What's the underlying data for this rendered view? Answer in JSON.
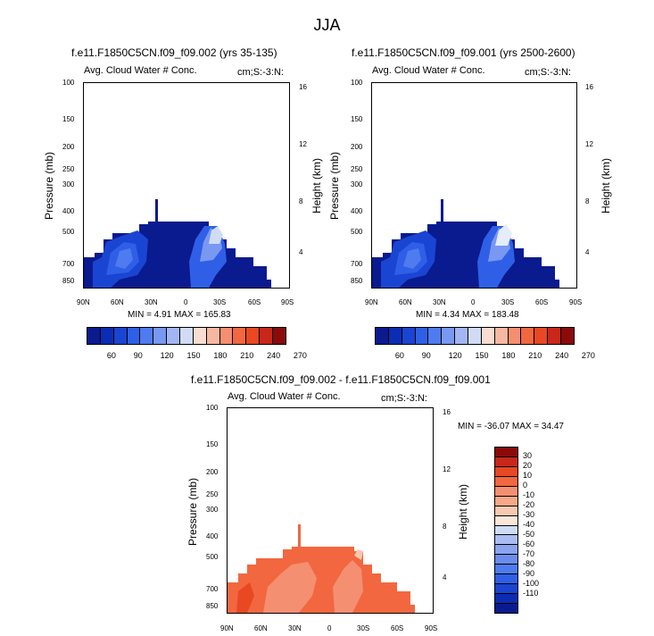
{
  "title": "JJA",
  "panels": [
    {
      "title": "f.e11.F1850C5CN.f09_f09.002 (yrs 35-135)",
      "left_label": "Avg. Cloud Water # Conc.",
      "right_label": "cm;S:-3:N:",
      "ylabel": "Pressure (mb)",
      "ylabel2": "Height (km)",
      "stats": "MIN =   4.91   MAX = 165.83"
    },
    {
      "title": "f.e11.F1850C5CN.f09_f09.001 (yrs 2500-2600)",
      "left_label": "Avg. Cloud Water # Conc.",
      "right_label": "cm;S:-3:N:",
      "ylabel": "Pressure (mb)",
      "ylabel2": "Height (km)",
      "stats": "MIN =   4.34   MAX = 183.48"
    },
    {
      "title": "f.e11.F1850C5CN.f09_f09.002 - f.e11.F1850C5CN.f09_f09.001",
      "left_label": "Avg. Cloud Water # Conc.",
      "right_label": "cm;S:-3:N:",
      "ylabel": "Pressure (mb)",
      "ylabel2": "Height (km)",
      "stats": "MIN = -36.07   MAX =  34.47"
    }
  ],
  "axes": {
    "pressure_ticks": [
      "100",
      "150",
      "200",
      "250",
      "300",
      "400",
      "500",
      "700",
      "850"
    ],
    "height_ticks": [
      "16",
      "12",
      "8",
      "4"
    ],
    "lat_ticks": [
      "90N",
      "60N",
      "30N",
      "0",
      "30S",
      "60S",
      "90S"
    ]
  },
  "colorbar1": {
    "labels": [
      "60",
      "90",
      "120",
      "150",
      "180",
      "210",
      "240",
      "270"
    ],
    "colors": [
      "#0a1a8f",
      "#0a2db4",
      "#1a45d2",
      "#2f5fe6",
      "#4f7bf0",
      "#7898f2",
      "#a2b6f4",
      "#d0dcf6",
      "#f8ddd0",
      "#f7b8a2",
      "#f58f72",
      "#f2673f",
      "#e84822",
      "#c8271a",
      "#8b0a0a"
    ]
  },
  "colorbar2": {
    "labels": [
      "30",
      "20",
      "10",
      "0",
      "-10",
      "-20",
      "-30",
      "-40",
      "-50",
      "-60",
      "-70",
      "-80",
      "-90",
      "-100",
      "-110"
    ],
    "colors": [
      "#8b0a0a",
      "#c8271a",
      "#e84822",
      "#f2673f",
      "#f58f72",
      "#f7a888",
      "#f8c8b0",
      "#fbe6da",
      "#d0dcf6",
      "#aabcf2",
      "#8aa4f0",
      "#6a8ced",
      "#4f7bf0",
      "#2f5fe6",
      "#1a45d2",
      "#0a2db4",
      "#0a1a8f"
    ]
  },
  "chart_data": [
    {
      "type": "heatmap",
      "title": "f.e11.F1850C5CN.f09_f09.002 (yrs 35-135)",
      "subtitle": "Avg. Cloud Water # Conc.",
      "units": "cm;S:-3:N:",
      "xlabel": "",
      "ylabel": "Pressure (mb)",
      "ylabel_right": "Height (km)",
      "x_ticks": [
        "90N",
        "60N",
        "30N",
        "0",
        "30S",
        "60S",
        "90S"
      ],
      "y_ticks": [
        100,
        150,
        200,
        250,
        300,
        400,
        500,
        700,
        850
      ],
      "y2_ticks": [
        16,
        12,
        8,
        4
      ],
      "min": 4.91,
      "max": 165.83,
      "levels": [
        60,
        90,
        120,
        150,
        180,
        210,
        240,
        270
      ]
    },
    {
      "type": "heatmap",
      "title": "f.e11.F1850C5CN.f09_f09.001 (yrs 2500-2600)",
      "subtitle": "Avg. Cloud Water # Conc.",
      "units": "cm;S:-3:N:",
      "xlabel": "",
      "ylabel": "Pressure (mb)",
      "ylabel_right": "Height (km)",
      "x_ticks": [
        "90N",
        "60N",
        "30N",
        "0",
        "30S",
        "60S",
        "90S"
      ],
      "y_ticks": [
        100,
        150,
        200,
        250,
        300,
        400,
        500,
        700,
        850
      ],
      "y2_ticks": [
        16,
        12,
        8,
        4
      ],
      "min": 4.34,
      "max": 183.48,
      "levels": [
        60,
        90,
        120,
        150,
        180,
        210,
        240,
        270
      ]
    },
    {
      "type": "heatmap",
      "title": "f.e11.F1850C5CN.f09_f09.002 - f.e11.F1850C5CN.f09_f09.001",
      "subtitle": "Avg. Cloud Water # Conc.",
      "units": "cm;S:-3:N:",
      "xlabel": "",
      "ylabel": "Pressure (mb)",
      "ylabel_right": "Height (km)",
      "x_ticks": [
        "90N",
        "60N",
        "30N",
        "0",
        "30S",
        "60S",
        "90S"
      ],
      "y_ticks": [
        100,
        150,
        200,
        250,
        300,
        400,
        500,
        700,
        850
      ],
      "y2_ticks": [
        16,
        12,
        8,
        4
      ],
      "min": -36.07,
      "max": 34.47,
      "levels": [
        30,
        20,
        10,
        0,
        -10,
        -20,
        -30,
        -40,
        -50,
        -60,
        -70,
        -80,
        -90,
        -100,
        -110
      ]
    }
  ]
}
